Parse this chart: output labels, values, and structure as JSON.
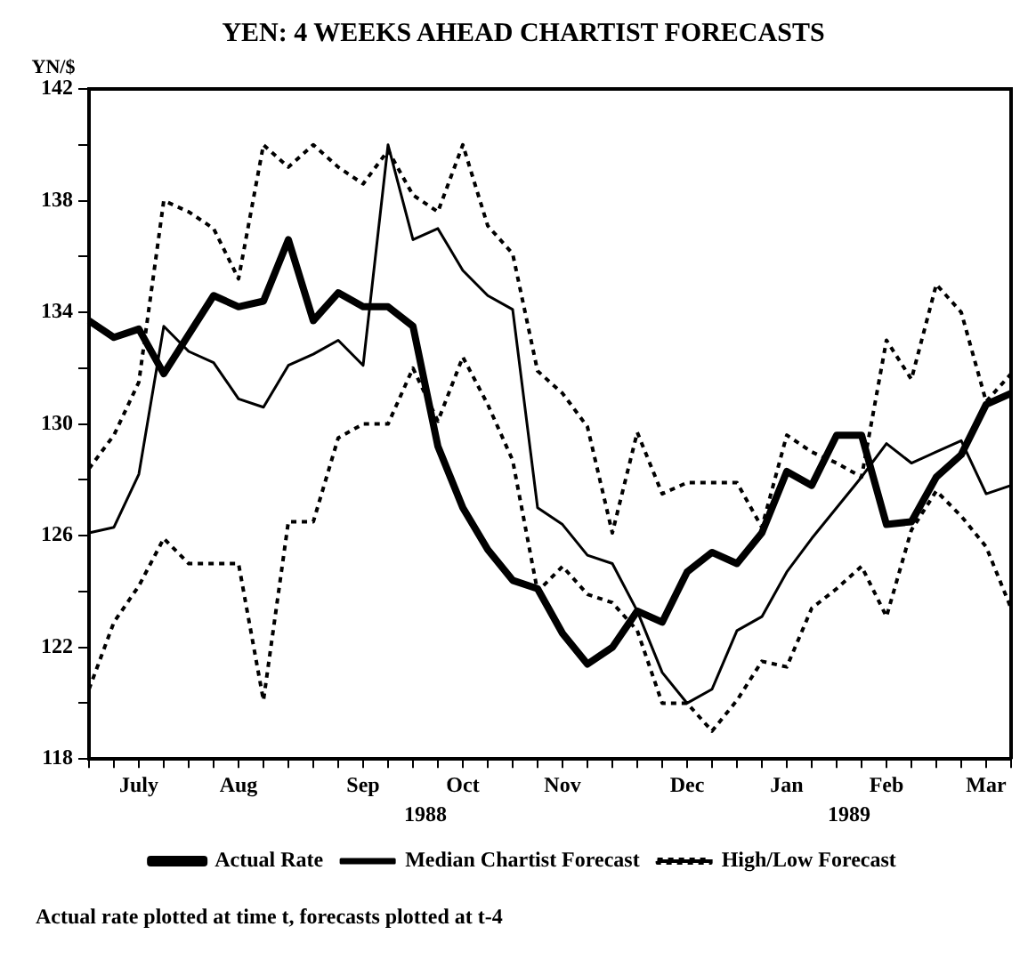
{
  "chart_data": {
    "type": "line",
    "title": "YEN: 4 WEEKS AHEAD CHARTIST FORECASTS",
    "ylabel": "YN/$",
    "categories": [
      null,
      null,
      "July",
      null,
      null,
      null,
      "Aug",
      null,
      null,
      null,
      null,
      "Sep",
      null,
      null,
      null,
      "Oct",
      null,
      null,
      null,
      "Nov",
      null,
      null,
      null,
      null,
      "Dec",
      null,
      null,
      null,
      "Jan",
      null,
      null,
      null,
      "Feb",
      null,
      null,
      null,
      "Mar",
      null
    ],
    "series": [
      {
        "name": "Actual Rate",
        "color": "#000000",
        "line_style": "solid",
        "values": [
          133.7,
          133.1,
          133.4,
          131.8,
          133.2,
          134.6,
          134.2,
          134.4,
          136.6,
          133.7,
          134.7,
          134.2,
          134.2,
          133.5,
          129.2,
          127.0,
          125.5,
          124.4,
          124.1,
          122.5,
          121.4,
          122.0,
          123.3,
          122.9,
          124.7,
          125.4,
          125.0,
          126.1,
          128.3,
          127.8,
          129.6,
          129.6,
          126.4,
          126.5,
          128.1,
          128.9,
          130.7,
          131.1
        ]
      },
      {
        "name": "Median Chartist Forecast",
        "color": "#000000",
        "line_style": "solid",
        "values": [
          126.1,
          126.3,
          128.2,
          133.5,
          132.6,
          132.2,
          130.9,
          130.6,
          132.1,
          132.5,
          133.0,
          132.1,
          140.0,
          136.6,
          137.0,
          135.5,
          134.6,
          134.1,
          127.0,
          126.4,
          125.3,
          125.0,
          123.3,
          121.1,
          120.0,
          120.5,
          122.6,
          123.1,
          124.7,
          125.9,
          127.0,
          128.1,
          129.3,
          128.6,
          129.0,
          129.4,
          127.5,
          127.8
        ]
      },
      {
        "name": "High/Low Forecast",
        "color": "#000000",
        "line_style": "dotted",
        "values": [
          128.4,
          129.6,
          131.5,
          138.0,
          137.6,
          137.0,
          135.2,
          140.0,
          139.2,
          140.0,
          139.2,
          138.6,
          139.8,
          138.2,
          137.6,
          140.0,
          137.1,
          136.1,
          131.9,
          131.1,
          129.9,
          126.1,
          129.7,
          127.5,
          127.9,
          127.9,
          127.9,
          126.3,
          129.6,
          129.0,
          128.6,
          128.1,
          133.0,
          131.6,
          135.0,
          134.0,
          130.8,
          131.8
        ]
      },
      {
        "color": "#000000",
        "line_style": "dotted",
        "values": [
          120.5,
          122.9,
          124.2,
          125.9,
          125.0,
          125.0,
          125.0,
          120.1,
          126.5,
          126.5,
          129.5,
          130.0,
          130.0,
          132.0,
          130.1,
          132.4,
          130.7,
          128.7,
          124.0,
          124.9,
          123.9,
          123.6,
          122.6,
          120.0,
          120.0,
          119.0,
          120.1,
          121.5,
          121.3,
          123.4,
          124.1,
          124.9,
          123.1,
          126.2,
          127.6,
          126.7,
          125.6,
          123.4
        ]
      }
    ],
    "ylim": [
      118,
      142
    ],
    "yticks": [
      118,
      {
        "value": 120,
        "label": null
      },
      122,
      {
        "value": 124,
        "label": null
      },
      126,
      {
        "value": 128,
        "label": null
      },
      130,
      {
        "value": 132,
        "label": null
      },
      134,
      {
        "value": 136,
        "label": null
      },
      138,
      {
        "value": 140,
        "label": null
      },
      142
    ],
    "grid": false,
    "legend": "bottom",
    "marker": "none",
    "annotations": [
      "1988",
      "1989",
      "Actual rate plotted at time t, forecasts plotted at t-4"
    ]
  }
}
